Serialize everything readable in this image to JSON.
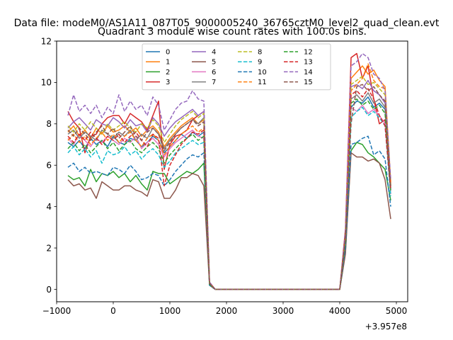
{
  "chart_data": {
    "type": "line",
    "suptitle": "Data file: modeM0/AS1A11_087T05_9000005240_36765cztM0_level2_quad_clean.evt",
    "title": "Quadrant 3 module wise count rates with 100.0s bins.",
    "xlabel": "",
    "ylabel": "",
    "x_offset_label": "+3.957e8",
    "xlim": [
      -1000,
      5200
    ],
    "ylim": [
      -0.6,
      12
    ],
    "xticks": [
      -1000,
      0,
      1000,
      2000,
      3000,
      4000,
      5000
    ],
    "xtick_labels": [
      "−1000",
      "0",
      "1000",
      "2000",
      "3000",
      "4000",
      "5000"
    ],
    "yticks": [
      0,
      2,
      4,
      6,
      8,
      10,
      12
    ],
    "ytick_labels": [
      "0",
      "2",
      "4",
      "6",
      "8",
      "10",
      "12"
    ],
    "grid": false,
    "legend": {
      "placement": "upper-center",
      "columns": 4
    },
    "x": [
      -800,
      -700,
      -600,
      -500,
      -400,
      -300,
      -200,
      -100,
      0,
      100,
      200,
      300,
      400,
      500,
      600,
      700,
      800,
      900,
      1000,
      1100,
      1200,
      1300,
      1400,
      1500,
      1600,
      1700,
      1800,
      1900,
      2000,
      2100,
      2200,
      2300,
      2400,
      2500,
      2600,
      2700,
      2800,
      2900,
      3000,
      3100,
      3200,
      3300,
      3400,
      3500,
      3600,
      3700,
      3800,
      3900,
      4000,
      4100,
      4200,
      4300,
      4400,
      4500,
      4600,
      4700,
      4800,
      4900
    ],
    "series": [
      {
        "name": "0",
        "color": "#1f77b4",
        "dash": "solid",
        "values": [
          7.1,
          6.9,
          7.2,
          6.8,
          7.3,
          7.0,
          7.2,
          6.9,
          7.4,
          7.1,
          7.0,
          7.3,
          7.2,
          6.9,
          7.1,
          7.4,
          7.2,
          6.6,
          6.9,
          7.2,
          7.5,
          7.3,
          7.6,
          7.4,
          7.6,
          0.25,
          0,
          0,
          0,
          0,
          0,
          0,
          0,
          0,
          0,
          0,
          0,
          0,
          0,
          0,
          0,
          0,
          0,
          0,
          0,
          0,
          0,
          0,
          0,
          2.2,
          8.8,
          9.1,
          9.0,
          9.3,
          8.8,
          9.0,
          8.7,
          4.8
        ]
      },
      {
        "name": "1",
        "color": "#ff7f0e",
        "dash": "solid",
        "values": [
          7.6,
          7.9,
          7.4,
          7.7,
          7.3,
          7.8,
          7.5,
          7.9,
          7.6,
          7.7,
          7.9,
          7.6,
          7.8,
          7.4,
          7.7,
          7.9,
          7.6,
          6.9,
          7.3,
          7.6,
          7.9,
          8.1,
          8.3,
          8.0,
          8.2,
          0.3,
          0,
          0,
          0,
          0,
          0,
          0,
          0,
          0,
          0,
          0,
          0,
          0,
          0,
          0,
          0,
          0,
          0,
          0,
          0,
          0,
          0,
          0,
          0,
          2.5,
          10.2,
          10.5,
          10.8,
          10.4,
          10.6,
          10.1,
          9.8,
          5.2
        ]
      },
      {
        "name": "2",
        "color": "#2ca02c",
        "dash": "solid",
        "values": [
          5.5,
          5.3,
          5.4,
          5.0,
          5.8,
          5.2,
          5.6,
          5.5,
          5.7,
          5.4,
          5.6,
          5.2,
          5.5,
          5.1,
          4.8,
          5.7,
          5.6,
          5.6,
          5.1,
          5.3,
          5.5,
          5.7,
          5.6,
          5.8,
          6.1,
          0.2,
          0,
          0,
          0,
          0,
          0,
          0,
          0,
          0,
          0,
          0,
          0,
          0,
          0,
          0,
          0,
          0,
          0,
          0,
          0,
          0,
          0,
          0,
          0,
          1.8,
          6.7,
          7.1,
          7.0,
          6.6,
          6.4,
          6.1,
          5.8,
          4.3
        ]
      },
      {
        "name": "3",
        "color": "#d62728",
        "dash": "solid",
        "values": [
          8.6,
          8.1,
          7.8,
          6.6,
          7.4,
          7.5,
          8.0,
          8.3,
          8.4,
          8.4,
          8.0,
          8.5,
          8.3,
          8.1,
          7.7,
          8.4,
          9.1,
          5.8,
          7.0,
          7.4,
          7.5,
          7.7,
          8.2,
          8.4,
          8.6,
          0.35,
          0,
          0,
          0,
          0,
          0,
          0,
          0,
          0,
          0,
          0,
          0,
          0,
          0,
          0,
          0,
          0,
          0,
          0,
          0,
          0,
          0,
          0,
          0,
          2.9,
          11.2,
          11.4,
          10.2,
          10.8,
          9.2,
          8.0,
          8.2,
          5.0
        ]
      },
      {
        "name": "4",
        "color": "#9467bd",
        "dash": "solid",
        "values": [
          7.8,
          8.1,
          8.3,
          8.0,
          7.7,
          8.2,
          8.0,
          7.9,
          8.3,
          8.1,
          7.8,
          8.2,
          7.9,
          8.0,
          7.6,
          8.3,
          8.0,
          7.4,
          7.8,
          8.1,
          8.3,
          8.5,
          8.7,
          8.4,
          8.6,
          0.3,
          0,
          0,
          0,
          0,
          0,
          0,
          0,
          0,
          0,
          0,
          0,
          0,
          0,
          0,
          0,
          0,
          0,
          0,
          0,
          0,
          0,
          0,
          0,
          2.6,
          9.8,
          9.9,
          9.7,
          10.1,
          9.6,
          9.4,
          9.0,
          5.0
        ]
      },
      {
        "name": "5",
        "color": "#8c564b",
        "dash": "solid",
        "values": [
          5.3,
          5.0,
          5.1,
          4.8,
          4.9,
          4.4,
          5.2,
          5.0,
          4.8,
          4.8,
          5.0,
          5.0,
          4.8,
          4.7,
          4.5,
          5.3,
          5.2,
          4.4,
          4.4,
          4.8,
          5.4,
          5.4,
          5.6,
          5.5,
          5.0,
          0.2,
          0,
          0,
          0,
          0,
          0,
          0,
          0,
          0,
          0,
          0,
          0,
          0,
          0,
          0,
          0,
          0,
          0,
          0,
          0,
          0,
          0,
          0,
          0,
          1.7,
          6.6,
          6.4,
          6.4,
          6.2,
          6.3,
          6.1,
          5.3,
          3.4
        ]
      },
      {
        "name": "6",
        "color": "#e377c2",
        "dash": "solid",
        "values": [
          7.3,
          7.0,
          7.5,
          7.2,
          6.9,
          7.3,
          7.1,
          7.4,
          7.2,
          7.0,
          7.3,
          7.1,
          7.4,
          6.8,
          7.1,
          7.3,
          7.0,
          6.4,
          6.8,
          7.1,
          7.3,
          7.5,
          7.7,
          7.4,
          7.3,
          0.25,
          0,
          0,
          0,
          0,
          0,
          0,
          0,
          0,
          0,
          0,
          0,
          0,
          0,
          0,
          0,
          0,
          0,
          0,
          0,
          0,
          0,
          0,
          0,
          2.3,
          8.8,
          8.6,
          8.9,
          8.5,
          8.7,
          8.4,
          8.0,
          4.6
        ]
      },
      {
        "name": "7",
        "color": "#7f7f7f",
        "dash": "solid",
        "values": [
          7.5,
          7.7,
          7.3,
          7.6,
          7.4,
          7.2,
          7.7,
          7.5,
          7.3,
          7.6,
          7.4,
          7.7,
          7.2,
          7.5,
          7.3,
          7.8,
          7.5,
          6.8,
          7.2,
          7.5,
          7.8,
          8.0,
          8.2,
          8.0,
          8.3,
          0.3,
          0,
          0,
          0,
          0,
          0,
          0,
          0,
          0,
          0,
          0,
          0,
          0,
          0,
          0,
          0,
          0,
          0,
          0,
          0,
          0,
          0,
          0,
          0,
          2.4,
          9.2,
          9.4,
          9.1,
          9.5,
          9.0,
          9.2,
          8.8,
          4.9
        ]
      },
      {
        "name": "8",
        "color": "#bcbd22",
        "dash": "dashed",
        "values": [
          7.9,
          7.6,
          8.0,
          7.7,
          8.1,
          7.8,
          7.5,
          8.0,
          7.7,
          7.9,
          8.1,
          7.8,
          7.6,
          8.0,
          7.8,
          8.2,
          7.9,
          7.1,
          7.5,
          7.9,
          8.2,
          8.4,
          8.6,
          8.3,
          8.5,
          0.3,
          0,
          0,
          0,
          0,
          0,
          0,
          0,
          0,
          0,
          0,
          0,
          0,
          0,
          0,
          0,
          0,
          0,
          0,
          0,
          0,
          0,
          0,
          0,
          2.6,
          9.9,
          10.1,
          10.3,
          9.9,
          10.0,
          9.7,
          9.4,
          5.0
        ]
      },
      {
        "name": "9",
        "color": "#17becf",
        "dash": "dashed",
        "values": [
          6.6,
          6.9,
          6.5,
          6.8,
          6.4,
          6.7,
          6.1,
          6.7,
          6.5,
          6.6,
          6.9,
          6.5,
          6.7,
          6.3,
          6.6,
          6.8,
          6.5,
          5.9,
          6.2,
          6.6,
          6.8,
          7.0,
          7.2,
          7.0,
          7.1,
          0.25,
          0,
          0,
          0,
          0,
          0,
          0,
          0,
          0,
          0,
          0,
          0,
          0,
          0,
          0,
          0,
          0,
          0,
          0,
          0,
          0,
          0,
          0,
          0,
          2.1,
          8.3,
          8.6,
          8.8,
          8.4,
          8.6,
          8.3,
          7.9,
          4.5
        ]
      },
      {
        "name": "10",
        "color": "#1f77b4",
        "dash": "dashed",
        "values": [
          5.9,
          6.1,
          5.7,
          5.9,
          5.6,
          5.7,
          5.6,
          5.5,
          5.9,
          5.8,
          5.6,
          6.0,
          5.7,
          5.3,
          5.4,
          5.6,
          5.5,
          5.0,
          5.3,
          5.7,
          6.0,
          6.3,
          6.5,
          6.4,
          6.6,
          0.2,
          0,
          0,
          0,
          0,
          0,
          0,
          0,
          0,
          0,
          0,
          0,
          0,
          0,
          0,
          0,
          0,
          0,
          0,
          0,
          0,
          0,
          0,
          0,
          2.0,
          7.0,
          7.1,
          7.3,
          7.4,
          6.5,
          6.7,
          6.3,
          4.0
        ]
      },
      {
        "name": "11",
        "color": "#ff7f0e",
        "dash": "dashed",
        "values": [
          7.2,
          7.5,
          7.1,
          7.4,
          7.0,
          7.3,
          7.6,
          7.2,
          7.5,
          7.1,
          7.4,
          7.6,
          7.2,
          6.9,
          7.3,
          7.5,
          7.2,
          6.5,
          6.9,
          7.2,
          7.5,
          7.7,
          7.9,
          7.6,
          7.8,
          0.3,
          0,
          0,
          0,
          0,
          0,
          0,
          0,
          0,
          0,
          0,
          0,
          0,
          0,
          0,
          0,
          0,
          0,
          0,
          0,
          0,
          0,
          0,
          0,
          2.4,
          9.6,
          9.9,
          10.2,
          10.9,
          10.1,
          9.8,
          9.7,
          5.1
        ]
      },
      {
        "name": "12",
        "color": "#2ca02c",
        "dash": "dashed",
        "values": [
          6.8,
          7.1,
          6.7,
          7.0,
          6.6,
          6.9,
          7.2,
          6.8,
          7.1,
          6.7,
          7.0,
          7.2,
          6.8,
          6.6,
          6.9,
          7.1,
          6.8,
          6.1,
          6.5,
          6.8,
          7.1,
          7.3,
          7.5,
          7.2,
          7.4,
          0.25,
          0,
          0,
          0,
          0,
          0,
          0,
          0,
          0,
          0,
          0,
          0,
          0,
          0,
          0,
          0,
          0,
          0,
          0,
          0,
          0,
          0,
          0,
          0,
          2.3,
          9.0,
          9.2,
          8.9,
          9.1,
          8.7,
          8.9,
          8.5,
          4.7
        ]
      },
      {
        "name": "13",
        "color": "#d62728",
        "dash": "dashed",
        "values": [
          7.4,
          7.1,
          7.5,
          7.2,
          7.6,
          7.3,
          7.0,
          7.4,
          7.2,
          7.5,
          7.1,
          7.4,
          7.6,
          7.2,
          6.9,
          7.5,
          7.3,
          5.0,
          6.0,
          6.5,
          7.0,
          7.3,
          7.6,
          7.5,
          7.7,
          0.3,
          0,
          0,
          0,
          0,
          0,
          0,
          0,
          0,
          0,
          0,
          0,
          0,
          0,
          0,
          0,
          0,
          0,
          0,
          0,
          0,
          0,
          0,
          0,
          2.5,
          9.4,
          9.6,
          9.3,
          9.7,
          9.2,
          8.4,
          7.9,
          4.8
        ]
      },
      {
        "name": "14",
        "color": "#9467bd",
        "dash": "dashed",
        "values": [
          8.4,
          9.4,
          8.6,
          8.9,
          8.5,
          8.9,
          8.3,
          8.8,
          8.5,
          9.4,
          8.6,
          9.1,
          8.7,
          8.9,
          8.4,
          9.3,
          8.9,
          7.7,
          8.2,
          8.7,
          9.0,
          9.1,
          9.6,
          9.2,
          9.1,
          0.35,
          0,
          0,
          0,
          0,
          0,
          0,
          0,
          0,
          0,
          0,
          0,
          0,
          0,
          0,
          0,
          0,
          0,
          0,
          0,
          0,
          0,
          0,
          0,
          2.8,
          10.8,
          11.0,
          11.4,
          11.2,
          10.4,
          10.2,
          9.6,
          5.3
        ]
      },
      {
        "name": "15",
        "color": "#8c564b",
        "dash": "dashed",
        "values": [
          7.7,
          7.4,
          7.8,
          7.5,
          7.2,
          7.6,
          7.9,
          7.5,
          7.8,
          7.3,
          7.6,
          7.9,
          7.4,
          7.2,
          7.6,
          7.8,
          7.5,
          6.7,
          7.1,
          7.5,
          7.8,
          8.0,
          8.2,
          7.9,
          8.1,
          0.3,
          0,
          0,
          0,
          0,
          0,
          0,
          0,
          0,
          0,
          0,
          0,
          0,
          0,
          0,
          0,
          0,
          0,
          0,
          0,
          0,
          0,
          0,
          0,
          2.5,
          8.0,
          9.8,
          9.9,
          9.6,
          9.8,
          9.4,
          9.1,
          4.9
        ]
      }
    ]
  }
}
